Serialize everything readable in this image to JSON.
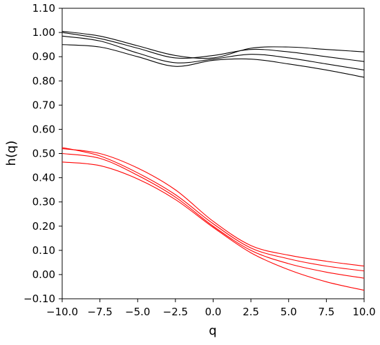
{
  "chart_data": {
    "type": "line",
    "title": "",
    "xlabel": "q",
    "ylabel": "h(q)",
    "xlim": [
      -10,
      10
    ],
    "ylim": [
      -0.1,
      1.1
    ],
    "xticks": [
      "−10.0",
      "−7.5",
      "−5.0",
      "−2.5",
      "0.0",
      "2.5",
      "5.0",
      "7.5",
      "10.0"
    ],
    "yticks": [
      "−0.10",
      "0.00",
      "0.10",
      "0.20",
      "0.30",
      "0.40",
      "0.50",
      "0.60",
      "0.70",
      "0.80",
      "0.90",
      "1.00",
      "1.10"
    ],
    "grid": false,
    "legend": "none",
    "colors": {
      "series_group_1": "#000000",
      "series_group_2": "#ff0000",
      "axis": "#000000"
    },
    "x": [
      -10,
      -7.5,
      -5,
      -2.5,
      0,
      2.5,
      5,
      7.5,
      10
    ],
    "series": [
      {
        "color": "#000000",
        "values": [
          1.005,
          0.985,
          0.945,
          0.905,
          0.895,
          0.935,
          0.94,
          0.93,
          0.92
        ]
      },
      {
        "color": "#000000",
        "values": [
          1.0,
          0.975,
          0.935,
          0.895,
          0.905,
          0.93,
          0.92,
          0.9,
          0.88
        ]
      },
      {
        "color": "#000000",
        "values": [
          0.985,
          0.965,
          0.915,
          0.875,
          0.89,
          0.91,
          0.895,
          0.87,
          0.845
        ]
      },
      {
        "color": "#000000",
        "values": [
          0.95,
          0.94,
          0.9,
          0.86,
          0.885,
          0.89,
          0.87,
          0.845,
          0.815
        ]
      },
      {
        "color": "#ff0000",
        "values": [
          0.52,
          0.5,
          0.44,
          0.35,
          0.22,
          0.12,
          0.08,
          0.055,
          0.035
        ]
      },
      {
        "color": "#ff0000",
        "values": [
          0.525,
          0.49,
          0.42,
          0.33,
          0.21,
          0.11,
          0.065,
          0.035,
          0.015
        ]
      },
      {
        "color": "#ff0000",
        "values": [
          0.5,
          0.48,
          0.41,
          0.32,
          0.2,
          0.1,
          0.045,
          0.01,
          -0.015
        ]
      },
      {
        "color": "#ff0000",
        "values": [
          0.465,
          0.45,
          0.395,
          0.31,
          0.195,
          0.09,
          0.02,
          -0.03,
          -0.065
        ]
      }
    ]
  }
}
